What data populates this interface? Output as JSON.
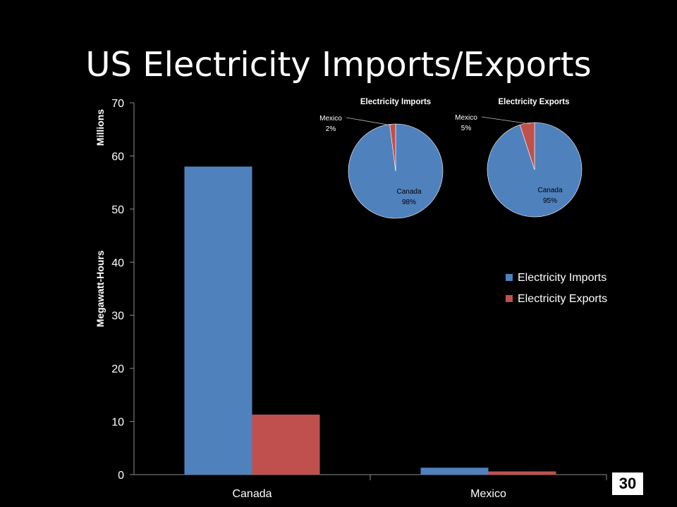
{
  "title": "US Electricity Imports/Exports",
  "page_number": "30",
  "colors": {
    "imports": "#4F81BD",
    "exports": "#C0504D",
    "background": "#000000",
    "axis": "#ffffff"
  },
  "chart_data": [
    {
      "type": "bar",
      "categories": [
        "Canada",
        "Mexico"
      ],
      "series": [
        {
          "name": "Electricity Imports",
          "values": [
            58,
            1.3
          ]
        },
        {
          "name": "Electricity Exports",
          "values": [
            11.3,
            0.6
          ]
        }
      ],
      "ylabel_top": "Millions",
      "ylabel": "Megawatt-Hours",
      "ylim": [
        0,
        70
      ],
      "yticks": [
        0,
        10,
        20,
        30,
        40,
        50,
        60,
        70
      ],
      "legend": "right",
      "grid": false
    },
    {
      "type": "pie",
      "title": "Electricity Imports",
      "slices": [
        {
          "label": "Canada",
          "value": 98,
          "value_label": "98%"
        },
        {
          "label": "Mexico",
          "value": 2,
          "value_label": "2%"
        }
      ]
    },
    {
      "type": "pie",
      "title": "Electricity Exports",
      "slices": [
        {
          "label": "Canada",
          "value": 95,
          "value_label": "95%"
        },
        {
          "label": "Mexico",
          "value": 5,
          "value_label": "5%"
        }
      ]
    }
  ]
}
